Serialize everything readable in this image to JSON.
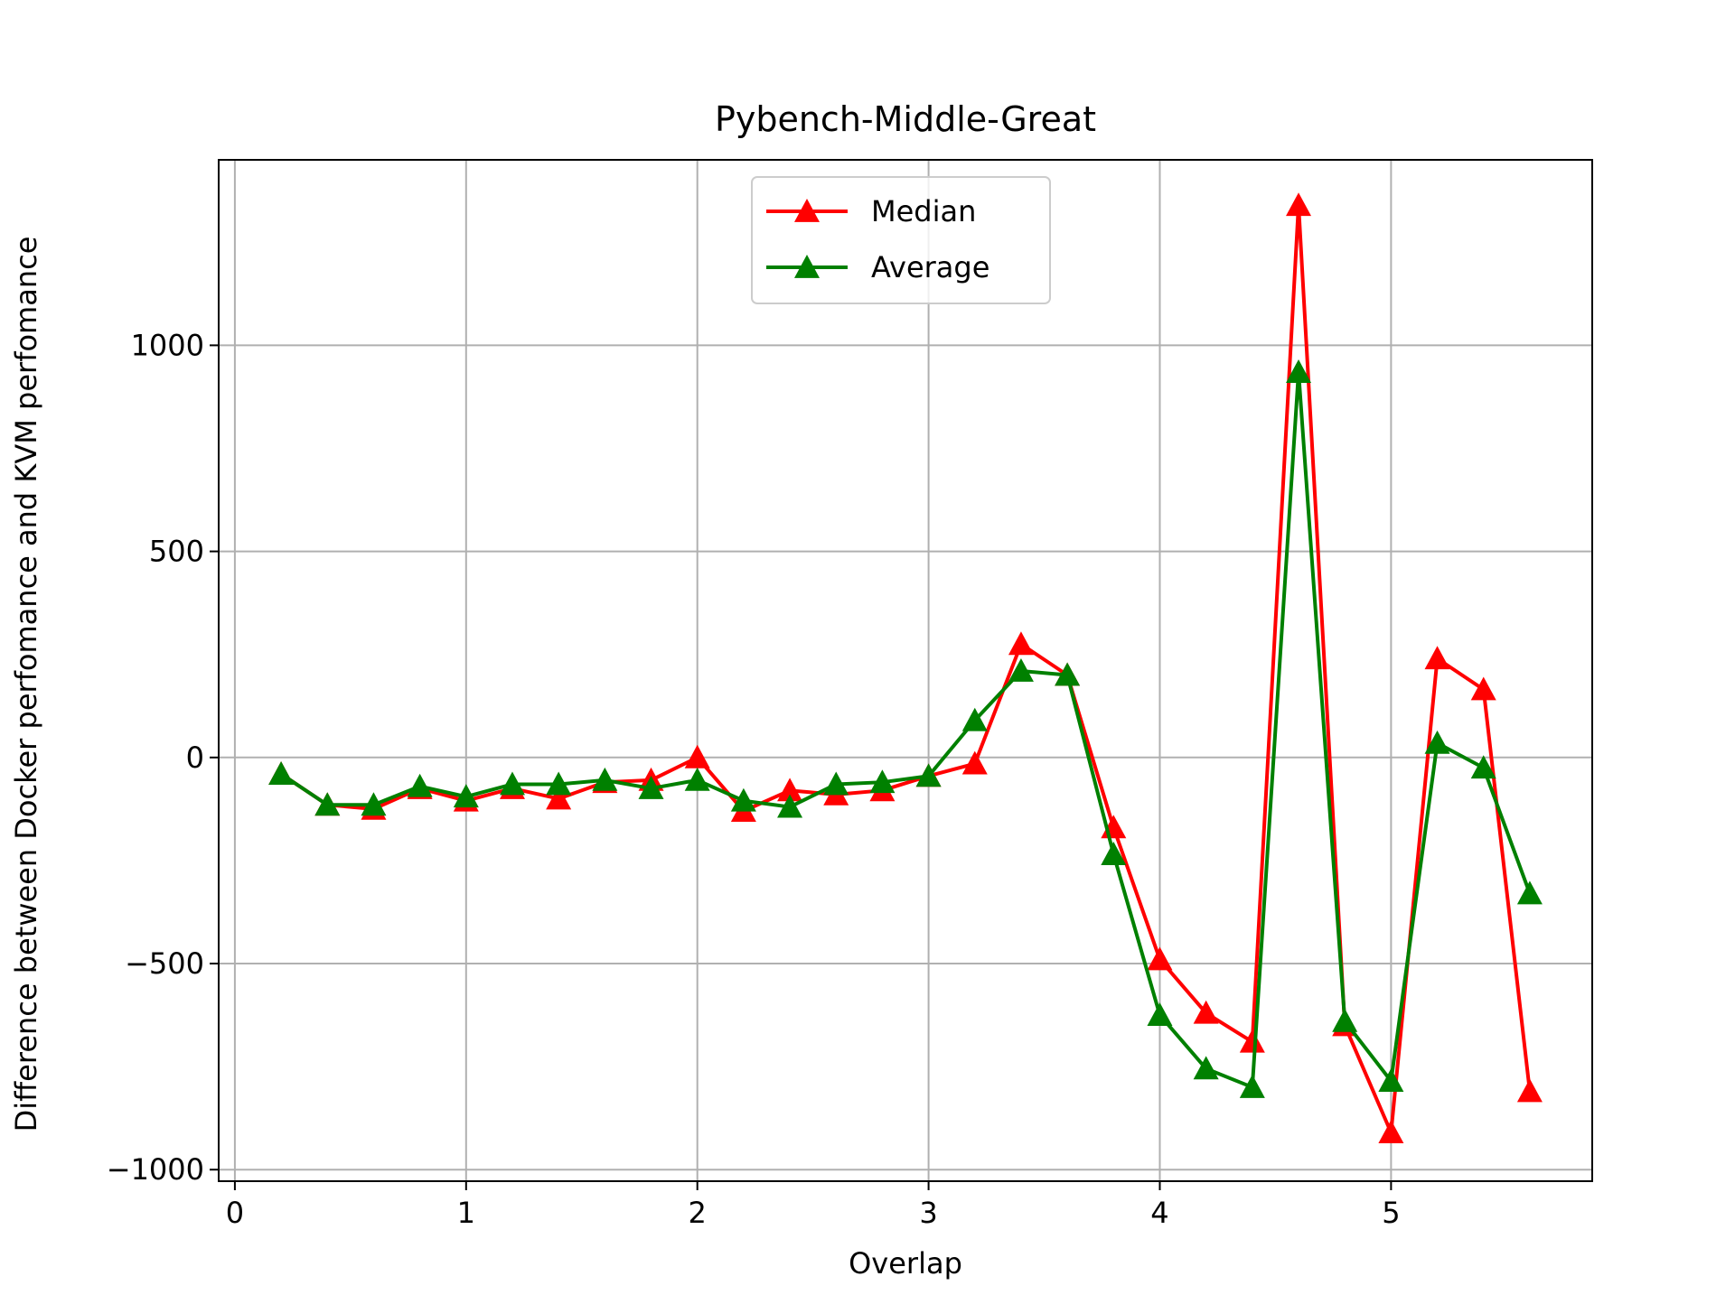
{
  "chart_data": {
    "type": "line",
    "title": "Pybench-Middle-Great",
    "xlabel": "Overlap",
    "ylabel": "Difference between Docker perfomance and KVM perfomance",
    "xlim": [
      -0.07,
      5.87
    ],
    "ylim": [
      -1028,
      1450
    ],
    "x_ticks": [
      0,
      1,
      2,
      3,
      4,
      5
    ],
    "x_tick_labels": [
      "0",
      "1",
      "2",
      "3",
      "4",
      "5"
    ],
    "y_ticks": [
      -1000,
      -500,
      0,
      500,
      1000
    ],
    "y_tick_labels": [
      "−1000",
      "−500",
      "0",
      "500",
      "1000"
    ],
    "grid": true,
    "legend_position": "top-center",
    "x": [
      0.2,
      0.4,
      0.6,
      0.8,
      1.0,
      1.2,
      1.4,
      1.6,
      1.8,
      2.0,
      2.2,
      2.4,
      2.6,
      2.8,
      3.0,
      3.2,
      3.4,
      3.6,
      3.8,
      4.0,
      4.2,
      4.4,
      4.6,
      4.8,
      5.0,
      5.2,
      5.4,
      5.6
    ],
    "series": [
      {
        "name": "Median",
        "color": "#ff0000",
        "marker": "triangle-up",
        "values": [
          -40,
          -115,
          -125,
          -75,
          -105,
          -75,
          -100,
          -60,
          -55,
          0,
          -130,
          -80,
          -90,
          -80,
          -45,
          -15,
          275,
          200,
          -170,
          -490,
          -620,
          -690,
          1340,
          -650,
          -910,
          240,
          165,
          -810
        ]
      },
      {
        "name": "Average",
        "color": "#008000",
        "marker": "triangle-up",
        "values": [
          -40,
          -115,
          -115,
          -70,
          -95,
          -65,
          -65,
          -55,
          -75,
          -55,
          -105,
          -120,
          -65,
          -60,
          -45,
          90,
          210,
          200,
          -235,
          -625,
          -755,
          -800,
          935,
          -640,
          -785,
          35,
          -25,
          -330
        ]
      }
    ]
  }
}
